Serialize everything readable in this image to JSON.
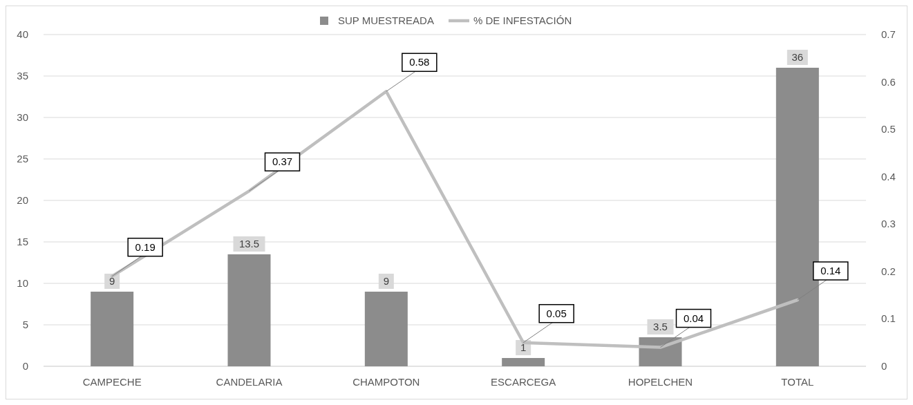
{
  "chart_data": {
    "type": "bar",
    "categories": [
      "CAMPECHE",
      "CANDELARIA",
      "CHAMPOTON",
      "ESCARCEGA",
      "HOPELCHEN",
      "TOTAL"
    ],
    "series": [
      {
        "name": "SUP MUESTREADA",
        "color": "#8c8c8c",
        "values": [
          9,
          13.5,
          9,
          1,
          3.5,
          36
        ]
      },
      {
        "name": "% DE INFESTACIÓN",
        "type": "line",
        "axis": "y2",
        "color": "#bfbfbf",
        "values": [
          0.19,
          0.37,
          0.58,
          0.05,
          0.04,
          0.14
        ]
      }
    ],
    "ylim": [
      0,
      40
    ],
    "yticks": [
      0,
      5,
      10,
      15,
      20,
      25,
      30,
      35,
      40
    ],
    "y2lim": [
      0,
      0.7
    ],
    "y2ticks": [
      0,
      0.1,
      0.2,
      0.3,
      0.4,
      0.5,
      0.6,
      0.7
    ],
    "grid": "y",
    "legend": "top",
    "data_labels": true,
    "marker": "none",
    "line_style": "solid"
  }
}
